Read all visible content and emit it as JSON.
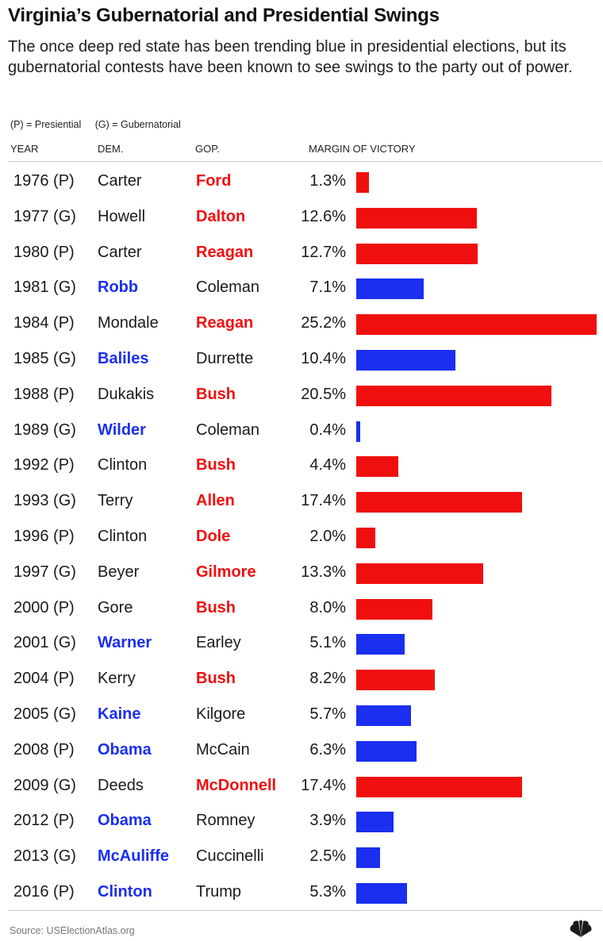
{
  "title": "Virginia’s Gubernatorial and Presidential Swings",
  "subtitle": "The once deep red state has been trending blue in presidential elections, but its gubernatorial contests have been known to see swings to the party out of power.",
  "legend": {
    "presidential": "(P) = Presiential",
    "gubernatorial": "(G) = Gubernatorial"
  },
  "columns": {
    "year": "YEAR",
    "dem": "DEM.",
    "gop": "GOP.",
    "margin": "MARGIN OF VICTORY"
  },
  "source": "Source: USElectionAtlas.org",
  "colors": {
    "dem": "#1a2ff0",
    "gop": "#f00f0f",
    "text": "#1a1a1a"
  },
  "chart_data": {
    "type": "bar",
    "orientation": "horizontal",
    "xlim": [
      0,
      25.2
    ],
    "rows": [
      {
        "year": "1976 (P)",
        "dem": "Carter",
        "gop": "Ford",
        "winner": "gop",
        "margin": 1.3,
        "margin_label": "1.3%"
      },
      {
        "year": "1977 (G)",
        "dem": "Howell",
        "gop": "Dalton",
        "winner": "gop",
        "margin": 12.6,
        "margin_label": "12.6%"
      },
      {
        "year": "1980 (P)",
        "dem": "Carter",
        "gop": "Reagan",
        "winner": "gop",
        "margin": 12.7,
        "margin_label": "12.7%"
      },
      {
        "year": "1981 (G)",
        "dem": "Robb",
        "gop": "Coleman",
        "winner": "dem",
        "margin": 7.1,
        "margin_label": "7.1%"
      },
      {
        "year": "1984 (P)",
        "dem": "Mondale",
        "gop": "Reagan",
        "winner": "gop",
        "margin": 25.2,
        "margin_label": "25.2%"
      },
      {
        "year": "1985 (G)",
        "dem": "Baliles",
        "gop": "Durrette",
        "winner": "dem",
        "margin": 10.4,
        "margin_label": "10.4%"
      },
      {
        "year": "1988 (P)",
        "dem": "Dukakis",
        "gop": "Bush",
        "winner": "gop",
        "margin": 20.5,
        "margin_label": "20.5%"
      },
      {
        "year": "1989 (G)",
        "dem": "Wilder",
        "gop": "Coleman",
        "winner": "dem",
        "margin": 0.4,
        "margin_label": "0.4%"
      },
      {
        "year": "1992 (P)",
        "dem": "Clinton",
        "gop": "Bush",
        "winner": "gop",
        "margin": 4.4,
        "margin_label": "4.4%"
      },
      {
        "year": "1993 (G)",
        "dem": "Terry",
        "gop": "Allen",
        "winner": "gop",
        "margin": 17.4,
        "margin_label": "17.4%"
      },
      {
        "year": "1996 (P)",
        "dem": "Clinton",
        "gop": "Dole",
        "winner": "gop",
        "margin": 2.0,
        "margin_label": "2.0%"
      },
      {
        "year": "1997 (G)",
        "dem": "Beyer",
        "gop": "Gilmore",
        "winner": "gop",
        "margin": 13.3,
        "margin_label": "13.3%"
      },
      {
        "year": "2000 (P)",
        "dem": "Gore",
        "gop": "Bush",
        "winner": "gop",
        "margin": 8.0,
        "margin_label": "8.0%"
      },
      {
        "year": "2001 (G)",
        "dem": "Warner",
        "gop": "Earley",
        "winner": "dem",
        "margin": 5.1,
        "margin_label": "5.1%"
      },
      {
        "year": "2004 (P)",
        "dem": "Kerry",
        "gop": "Bush",
        "winner": "gop",
        "margin": 8.2,
        "margin_label": "8.2%"
      },
      {
        "year": "2005 (G)",
        "dem": "Kaine",
        "gop": "Kilgore",
        "winner": "dem",
        "margin": 5.7,
        "margin_label": "5.7%"
      },
      {
        "year": "2008 (P)",
        "dem": "Obama",
        "gop": "McCain",
        "winner": "dem",
        "margin": 6.3,
        "margin_label": "6.3%"
      },
      {
        "year": "2009 (G)",
        "dem": "Deeds",
        "gop": "McDonnell",
        "winner": "gop",
        "margin": 17.4,
        "margin_label": "17.4%"
      },
      {
        "year": "2012 (P)",
        "dem": "Obama",
        "gop": "Romney",
        "winner": "dem",
        "margin": 3.9,
        "margin_label": "3.9%"
      },
      {
        "year": "2013 (G)",
        "dem": "McAuliffe",
        "gop": "Cuccinelli",
        "winner": "dem",
        "margin": 2.5,
        "margin_label": "2.5%"
      },
      {
        "year": "2016 (P)",
        "dem": "Clinton",
        "gop": "Trump",
        "winner": "dem",
        "margin": 5.3,
        "margin_label": "5.3%"
      }
    ]
  }
}
